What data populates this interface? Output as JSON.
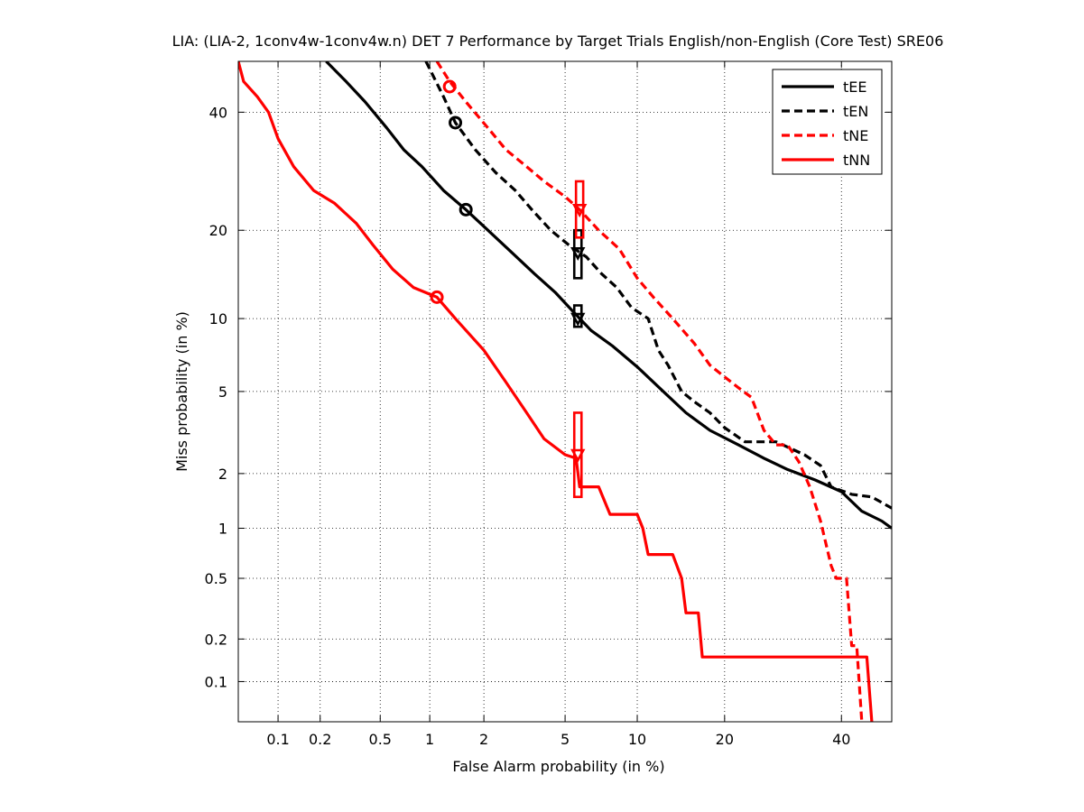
{
  "chart_data": {
    "type": "line",
    "title": "LIA: (LIA-2, 1conv4w-1conv4w.n) DET 7 Performance by Target Trials English/non-English (Core Test) SRE06",
    "xlabel": "False Alarm probability (in %)",
    "ylabel": "Miss probability (in %)",
    "scale": "probit (normal deviate) on both axes",
    "xlim": [
      0.05,
      50
    ],
    "ylim": [
      0.05,
      50
    ],
    "grid": true,
    "legend_position": "top-right",
    "x_ticks": [
      "0.1",
      "0.2",
      "0.5",
      "1",
      "2",
      "5",
      "10",
      "20",
      "40"
    ],
    "y_ticks": [
      "0.1",
      "0.2",
      "0.5",
      "1",
      "2",
      "5",
      "10",
      "20",
      "40"
    ],
    "x_tick_values": [
      0.1,
      0.2,
      0.5,
      1,
      2,
      5,
      10,
      20,
      40
    ],
    "y_tick_values": [
      0.1,
      0.2,
      0.5,
      1,
      2,
      5,
      10,
      20,
      40
    ],
    "series": [
      {
        "name": "tEE",
        "color": "#000000",
        "style": "solid",
        "points": [
          [
            0.22,
            50
          ],
          [
            0.3,
            46
          ],
          [
            0.4,
            42
          ],
          [
            0.55,
            37
          ],
          [
            0.7,
            33
          ],
          [
            0.9,
            30
          ],
          [
            1.2,
            26
          ],
          [
            1.6,
            23
          ],
          [
            2.1,
            20
          ],
          [
            2.8,
            17
          ],
          [
            3.6,
            14.5
          ],
          [
            4.5,
            12.5
          ],
          [
            5.5,
            10.5
          ],
          [
            6.5,
            9
          ],
          [
            8,
            7.8
          ],
          [
            10,
            6.4
          ],
          [
            12.5,
            5
          ],
          [
            15,
            4
          ],
          [
            18,
            3.3
          ],
          [
            22,
            2.8
          ],
          [
            26,
            2.4
          ],
          [
            30,
            2.1
          ],
          [
            35,
            1.85
          ],
          [
            40,
            1.6
          ],
          [
            44,
            1.25
          ],
          [
            48,
            1.1
          ],
          [
            50,
            1.0
          ]
        ],
        "min_dcf": [
          1.6,
          23
        ],
        "act_dcf": [
          5.7,
          10
        ]
      },
      {
        "name": "tEN",
        "color": "#000000",
        "style": "dashed",
        "points": [
          [
            0.95,
            50
          ],
          [
            1.2,
            43
          ],
          [
            1.4,
            38
          ],
          [
            1.8,
            33
          ],
          [
            2.3,
            29
          ],
          [
            2.9,
            26
          ],
          [
            3.5,
            23
          ],
          [
            4.3,
            20
          ],
          [
            5.2,
            18
          ],
          [
            6.2,
            16.5
          ],
          [
            7.2,
            14.5
          ],
          [
            8.3,
            13
          ],
          [
            9.5,
            11
          ],
          [
            11,
            10
          ],
          [
            12,
            7.5
          ],
          [
            13,
            6.5
          ],
          [
            14.5,
            5
          ],
          [
            16,
            4.5
          ],
          [
            18,
            4
          ],
          [
            20,
            3.4
          ],
          [
            23,
            2.9
          ],
          [
            28,
            2.9
          ],
          [
            33,
            2.5
          ],
          [
            36,
            2.2
          ],
          [
            38,
            1.7
          ],
          [
            42,
            1.55
          ],
          [
            46,
            1.5
          ],
          [
            50,
            1.3
          ]
        ],
        "min_dcf": [
          1.4,
          38
        ],
        "act_dcf": [
          5.7,
          17
        ]
      },
      {
        "name": "tNE",
        "color": "#ff0000",
        "style": "dashed",
        "points": [
          [
            1.1,
            50
          ],
          [
            1.3,
            46
          ],
          [
            1.6,
            42
          ],
          [
            2.1,
            37
          ],
          [
            2.6,
            33
          ],
          [
            3.3,
            30
          ],
          [
            4,
            27.5
          ],
          [
            5,
            25
          ],
          [
            5.8,
            23
          ],
          [
            7,
            20
          ],
          [
            8.5,
            17.5
          ],
          [
            10,
            14
          ],
          [
            11.5,
            12
          ],
          [
            13.5,
            10
          ],
          [
            16,
            8
          ],
          [
            18,
            6.5
          ],
          [
            20,
            5.8
          ],
          [
            22,
            5.2
          ],
          [
            24,
            4.7
          ],
          [
            26,
            3.3
          ],
          [
            28,
            2.8
          ],
          [
            30,
            2.8
          ],
          [
            32,
            2.3
          ],
          [
            34,
            1.7
          ],
          [
            36,
            1.1
          ],
          [
            38,
            0.6
          ],
          [
            39,
            0.5
          ],
          [
            41,
            0.5
          ],
          [
            42,
            0.18
          ],
          [
            43,
            0.18
          ],
          [
            44,
            0.05
          ]
        ],
        "min_dcf": [
          1.3,
          45
        ],
        "act_dcf": [
          5.8,
          23
        ]
      },
      {
        "name": "tNN",
        "color": "#ff0000",
        "style": "solid",
        "points": [
          [
            0.05,
            50
          ],
          [
            0.055,
            46
          ],
          [
            0.07,
            43
          ],
          [
            0.085,
            40
          ],
          [
            0.1,
            35
          ],
          [
            0.13,
            30
          ],
          [
            0.18,
            26
          ],
          [
            0.25,
            24
          ],
          [
            0.35,
            21
          ],
          [
            0.45,
            18
          ],
          [
            0.6,
            15
          ],
          [
            0.8,
            13
          ],
          [
            1.1,
            12
          ],
          [
            1.4,
            10
          ],
          [
            2,
            7.5
          ],
          [
            2.6,
            5.5
          ],
          [
            3.3,
            4
          ],
          [
            4,
            3
          ],
          [
            5,
            2.5
          ],
          [
            5.6,
            2.4
          ],
          [
            5.8,
            1.7
          ],
          [
            7,
            1.7
          ],
          [
            7.8,
            1.2
          ],
          [
            10,
            1.2
          ],
          [
            10.5,
            1
          ],
          [
            11,
            0.7
          ],
          [
            13.5,
            0.7
          ],
          [
            14.5,
            0.5
          ],
          [
            15,
            0.3
          ],
          [
            16.5,
            0.3
          ],
          [
            17,
            0.15
          ],
          [
            45,
            0.15
          ],
          [
            46,
            0.05
          ]
        ],
        "min_dcf": [
          1.1,
          12
        ],
        "act_dcf": [
          5.7,
          2.5
        ]
      }
    ],
    "act_dcf_boxes": [
      {
        "series": "tEE",
        "x": 5.7,
        "y_lo": 9.3,
        "y_hi": 11.2,
        "color": "#000000"
      },
      {
        "series": "tEN",
        "x": 5.7,
        "y_lo": 14,
        "y_hi": 20,
        "color": "#000000"
      },
      {
        "series": "tNE",
        "x": 5.8,
        "y_lo": 19,
        "y_hi": 27.5,
        "color": "#ff0000"
      },
      {
        "series": "tNN",
        "x": 5.7,
        "y_lo": 1.5,
        "y_hi": 4,
        "color": "#ff0000"
      }
    ]
  }
}
